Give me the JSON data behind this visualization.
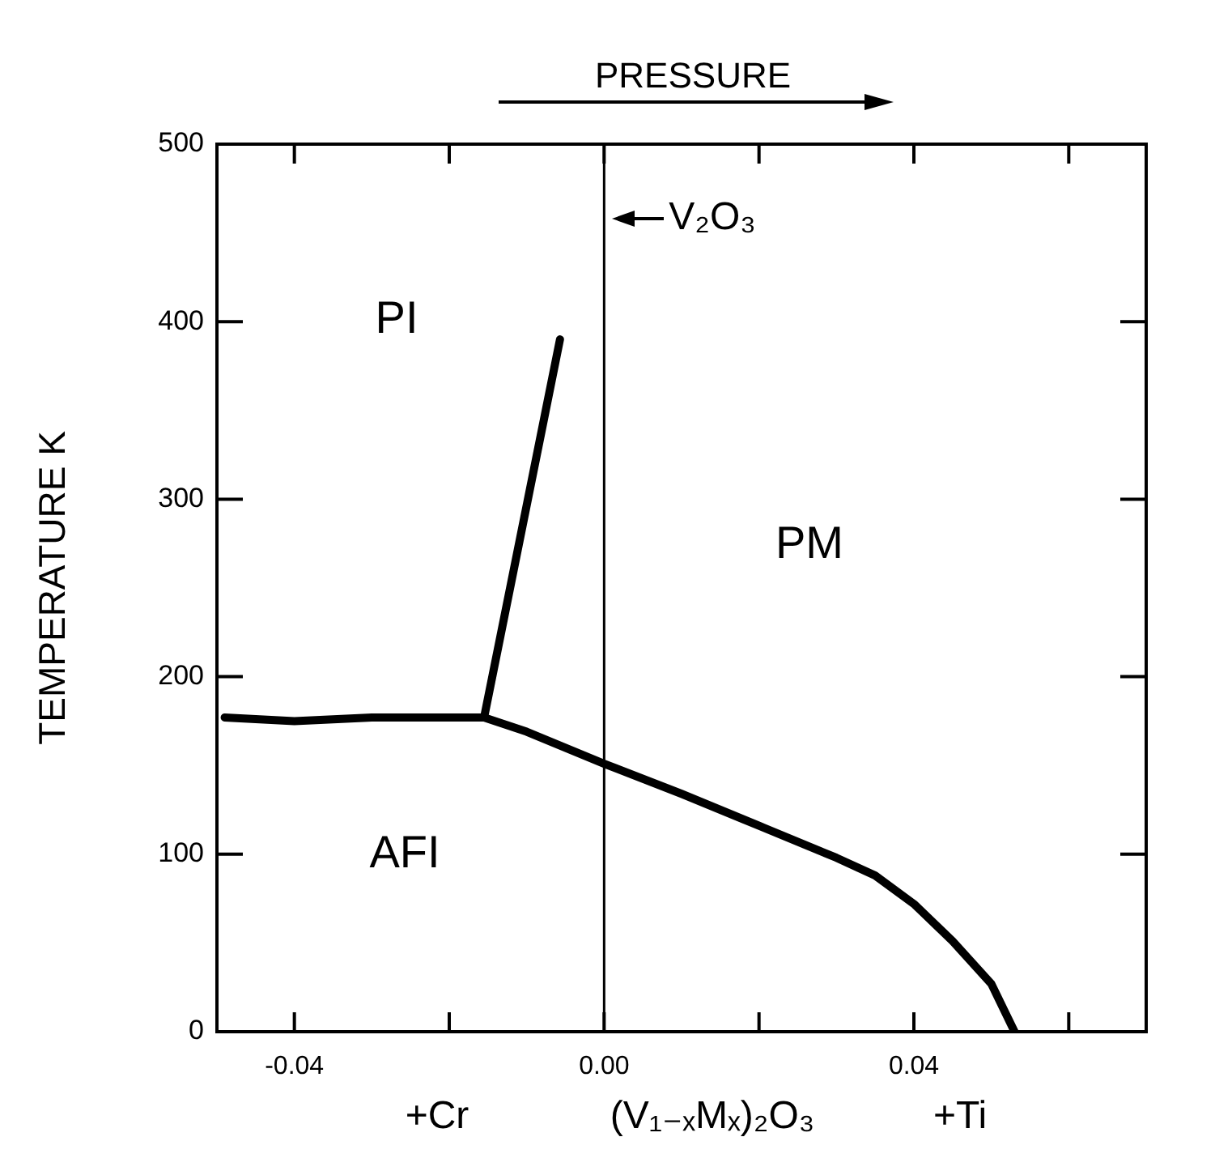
{
  "chart_data": {
    "type": "line",
    "xlabel": "(V₁₋ₓMₓ)₂O₃",
    "ylabel": "TEMPERATURE K",
    "xlim": [
      -0.05,
      0.07
    ],
    "xticks": [
      -0.04,
      {
        "value": -0.02,
        "label": null
      },
      {
        "value": 0,
        "label": "0.00"
      },
      {
        "value": 0.02,
        "label": null
      },
      0.04,
      {
        "value": 0.06,
        "label": null
      }
    ],
    "ylim": [
      0,
      500
    ],
    "yticks": [
      0,
      100,
      200,
      300,
      400,
      500
    ],
    "series": [
      {
        "color": "#000000",
        "x": [
          -0.0155,
          -0.0057
        ],
        "values": [
          177,
          390
        ]
      },
      {
        "color": "#000000",
        "x": [
          -0.049,
          -0.04,
          -0.03,
          -0.02,
          -0.0155,
          -0.01,
          0,
          0.01,
          0.02,
          0.03,
          0.035,
          0.04,
          0.045,
          0.05,
          0.053
        ],
        "values": [
          177,
          175,
          177,
          177,
          177,
          169,
          151,
          134,
          116,
          98,
          88,
          72,
          51,
          27,
          0
        ]
      }
    ],
    "ref_lines": [
      {
        "axis": "x",
        "value": 0,
        "label": "V₂O₃"
      }
    ],
    "annotations": [
      "PI",
      "PM",
      "AFI",
      "PRESSURE",
      "+Cr",
      "+Ti"
    ],
    "grid": false,
    "legend": false
  }
}
